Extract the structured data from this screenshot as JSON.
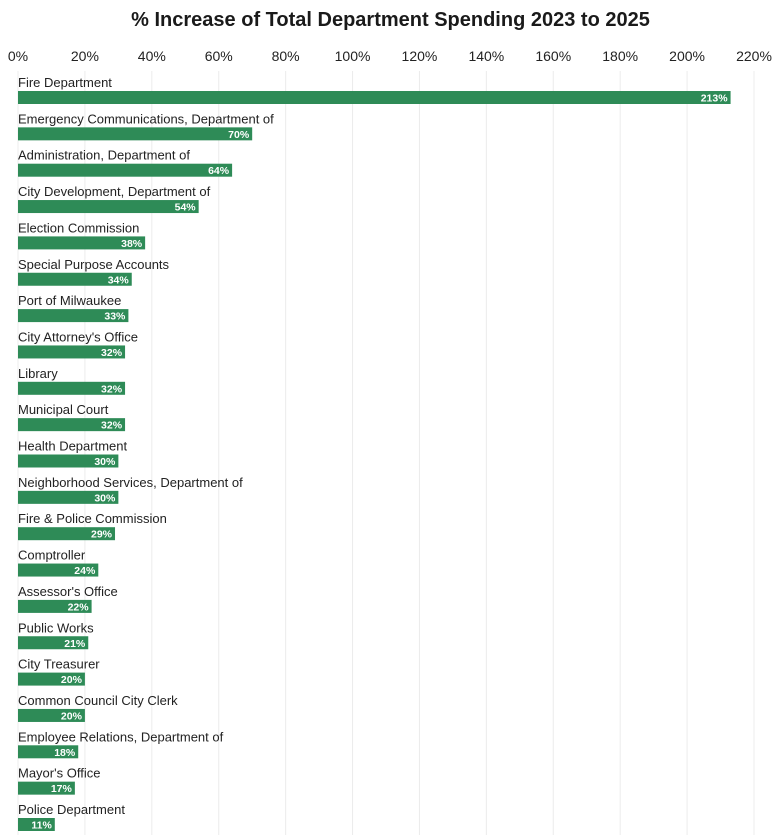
{
  "chart_data": {
    "type": "bar",
    "orientation": "horizontal",
    "title": "% Increase of Total Department Spending 2023 to 2025",
    "xlabel": "",
    "ylabel": "",
    "xlim": [
      0,
      220
    ],
    "x_ticks": [
      0,
      20,
      40,
      60,
      80,
      100,
      120,
      140,
      160,
      180,
      200,
      220
    ],
    "x_tick_labels": [
      "0%",
      "20%",
      "40%",
      "60%",
      "80%",
      "100%",
      "120%",
      "140%",
      "160%",
      "180%",
      "200%",
      "220%"
    ],
    "grid": true,
    "legend": "none",
    "bar_color": "#2e8b57",
    "categories": [
      "Fire Department",
      "Emergency Communications, Department of",
      "Administration, Department of",
      "City Development, Department of",
      "Election Commission",
      "Special Purpose Accounts",
      "Port of Milwaukee",
      "City Attorney's Office",
      "Library",
      "Municipal Court",
      "Health Department",
      "Neighborhood Services, Department of",
      "Fire & Police Commission",
      "Comptroller",
      "Assessor's Office",
      "Public Works",
      "City Treasurer",
      "Common Council City Clerk",
      "Employee Relations, Department of",
      "Mayor's Office",
      "Police Department"
    ],
    "values": [
      213,
      70,
      64,
      54,
      38,
      34,
      33,
      32,
      32,
      32,
      30,
      30,
      29,
      24,
      22,
      21,
      20,
      20,
      18,
      17,
      11
    ],
    "data_labels": [
      "213%",
      "70%",
      "64%",
      "54%",
      "38%",
      "34%",
      "33%",
      "32%",
      "32%",
      "32%",
      "30%",
      "30%",
      "29%",
      "24%",
      "22%",
      "21%",
      "20%",
      "20%",
      "18%",
      "17%",
      "11%"
    ]
  }
}
